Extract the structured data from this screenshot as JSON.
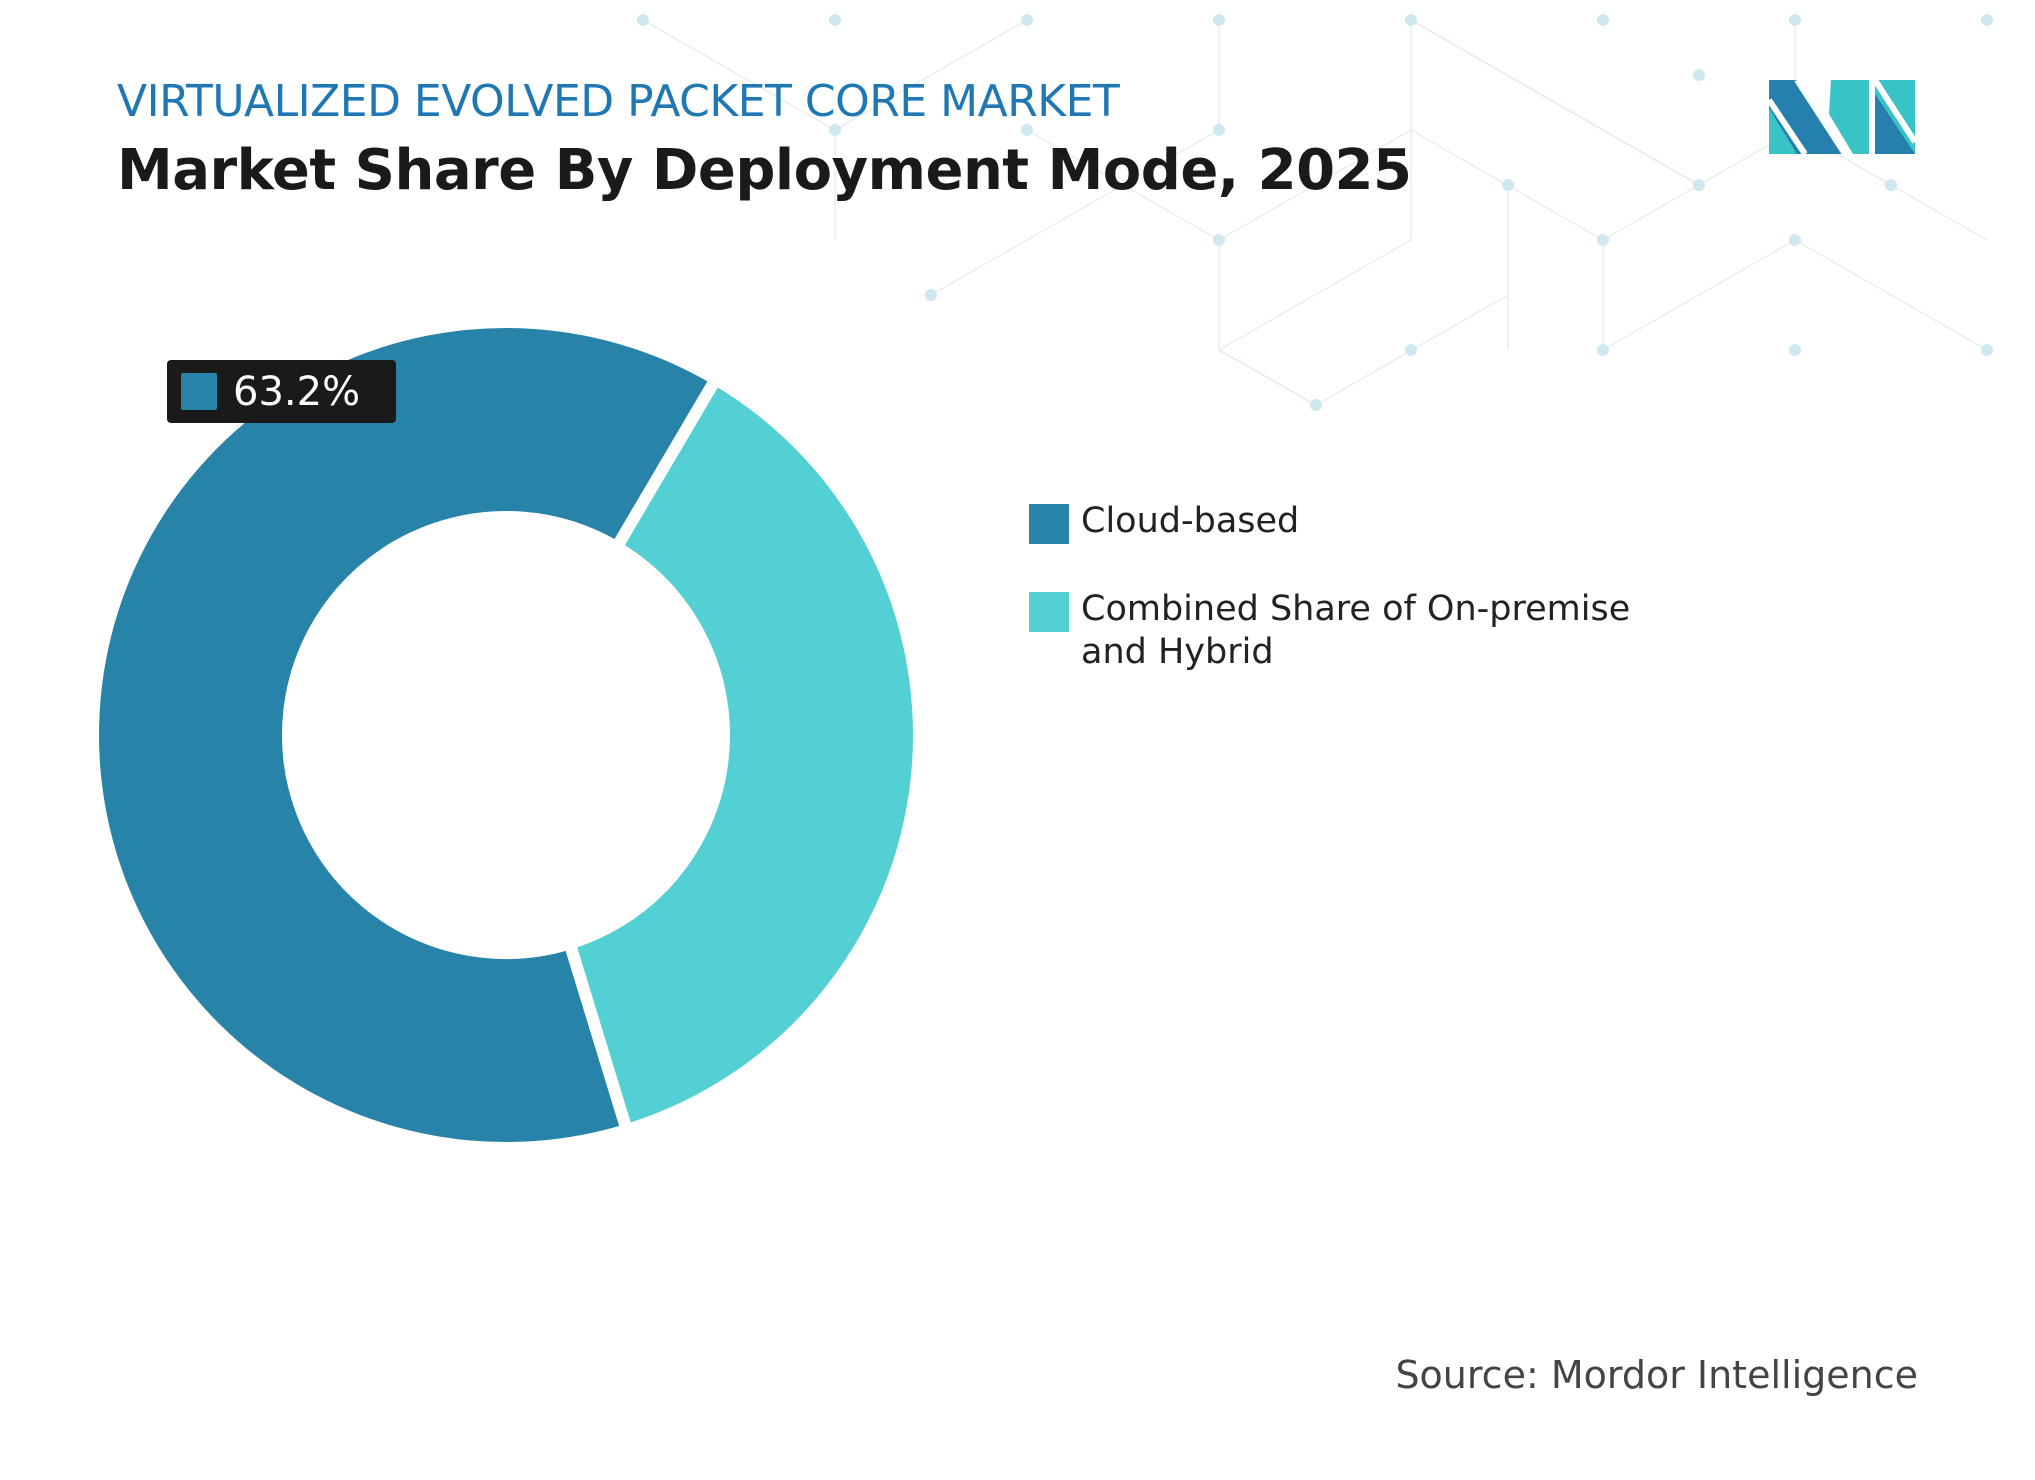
{
  "header": {
    "subtitle": "VIRTUALIZED EVOLVED PACKET CORE MARKET",
    "title": "Market Share By Deployment Mode, 2025"
  },
  "logo": {
    "name": "mordor-intelligence-logo",
    "colors": [
      "#2580ad",
      "#38c3c6"
    ]
  },
  "chart_data": {
    "type": "pie",
    "variant": "donut",
    "categories": [
      "Cloud-based",
      "Combined Share of On-premise and Hybrid"
    ],
    "values": [
      63.2,
      36.8
    ],
    "colors": [
      "#2783a8",
      "#52d0d3"
    ],
    "data_labels": [
      {
        "category": "Cloud-based",
        "text": "63.2%"
      }
    ],
    "legend": "right"
  },
  "footer": {
    "source": "Source: Mordor Intelligence"
  }
}
